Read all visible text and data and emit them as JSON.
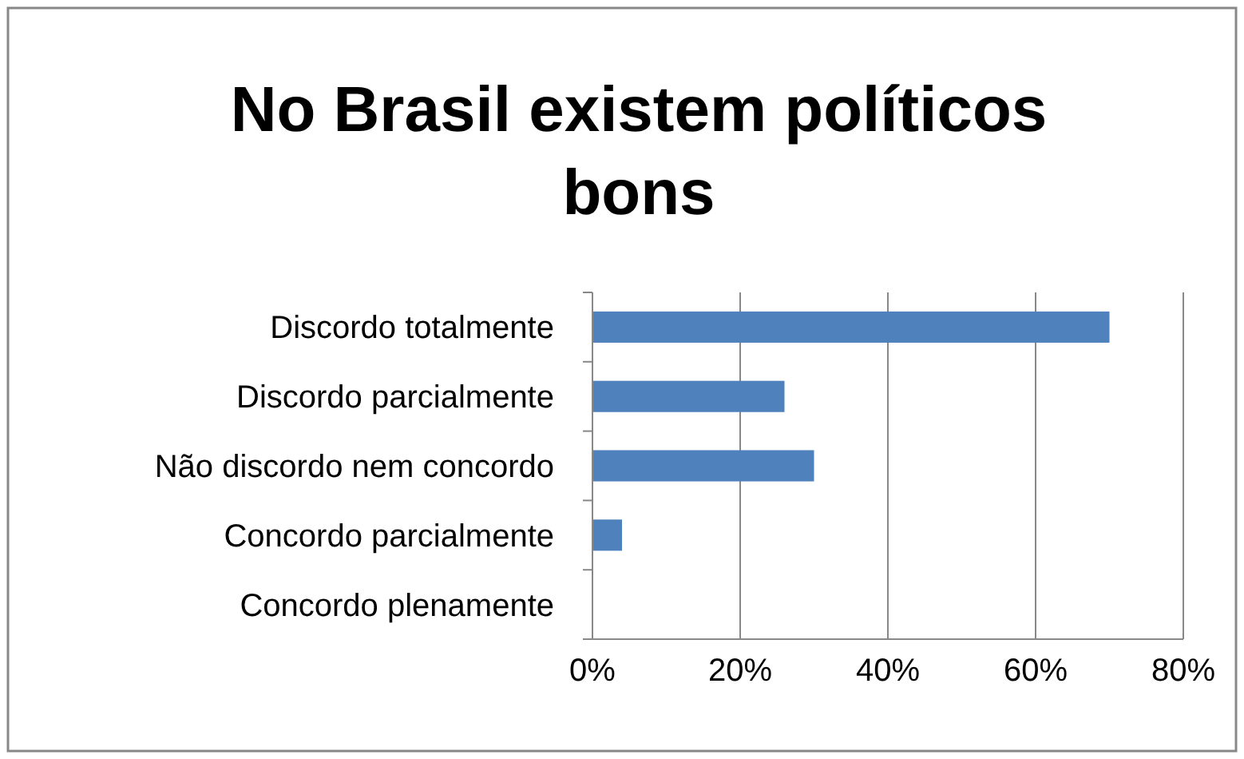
{
  "chart_data": {
    "type": "bar",
    "orientation": "horizontal",
    "title": "No Brasil existem políticos bons",
    "categories": [
      "Discordo totalmente",
      "Discordo parcialmente",
      "Não discordo nem concordo",
      "Concordo parcialmente",
      "Concordo plenamente"
    ],
    "values": [
      70,
      26,
      30,
      4,
      0
    ],
    "color": "#4f81bd",
    "xlim": [
      0,
      80
    ],
    "xticks": [
      {
        "value": 0,
        "label": "0%"
      },
      {
        "value": 20,
        "label": "20%"
      },
      {
        "value": 40,
        "label": "40%"
      },
      {
        "value": 60,
        "label": "60%"
      },
      {
        "value": 80,
        "label": "80%"
      }
    ],
    "grid": "x"
  }
}
